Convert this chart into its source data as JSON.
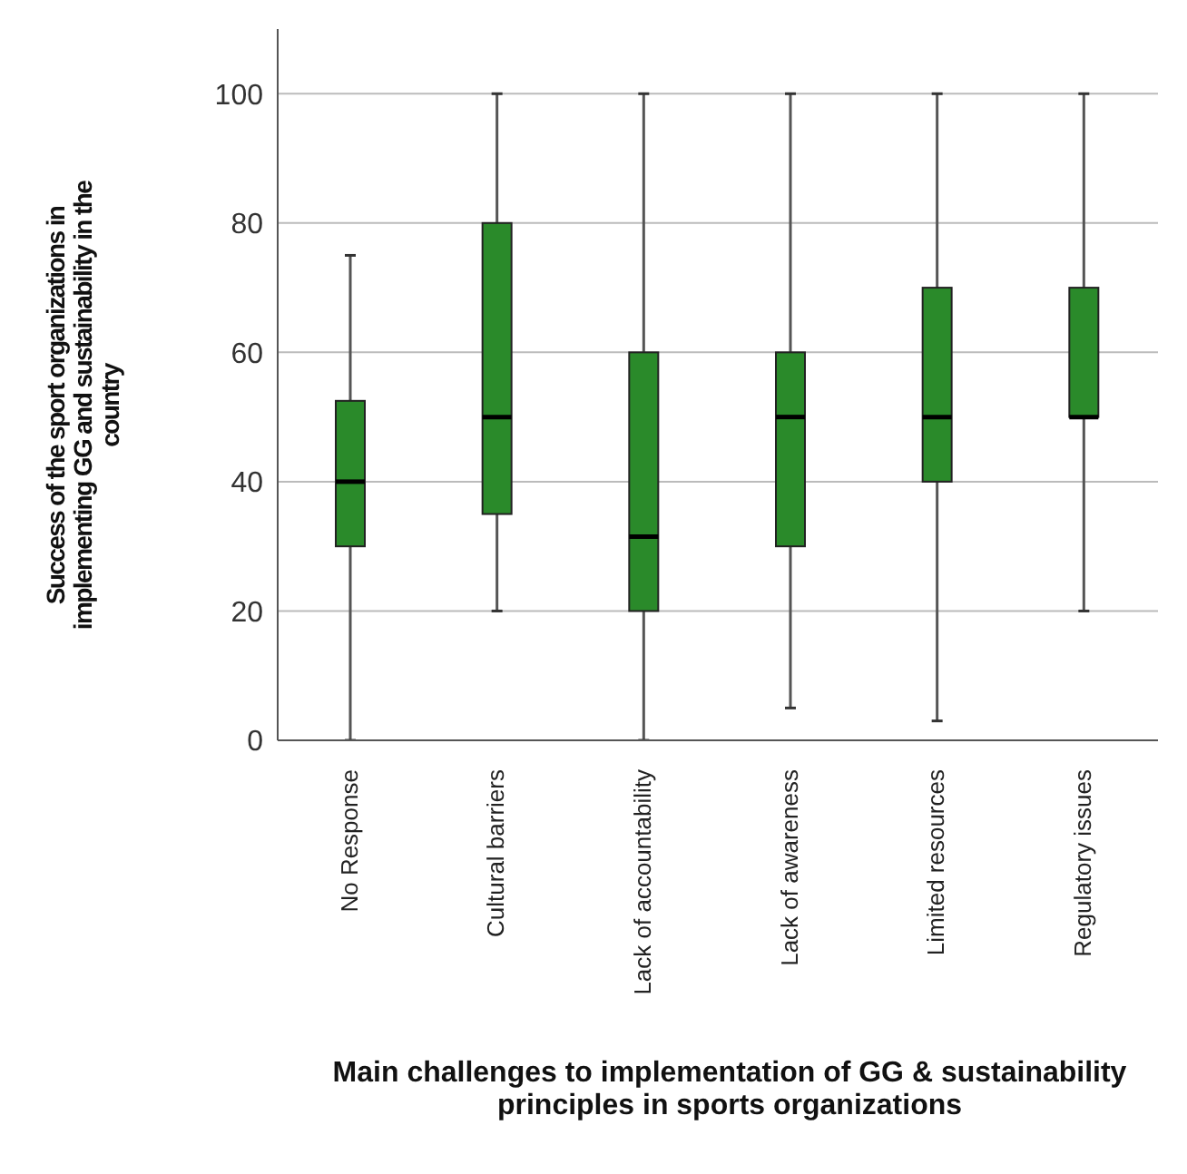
{
  "chart_data": {
    "type": "box",
    "xlabel": "Main challenges to implementation of GG & sustainability principles in sports organizations",
    "ylabel": "Success of the sport organizations in implementing GG and sustainability in the country",
    "categories": [
      "No Response",
      "Cultural barriers",
      "Lack of accountability",
      "Lack of awareness",
      "Limited resources",
      "Regulatory issues"
    ],
    "boxes": [
      {
        "low": 0,
        "q1": 30,
        "median": 40,
        "q3": 52.5,
        "high": 75
      },
      {
        "low": 20,
        "q1": 35,
        "median": 50,
        "q3": 80,
        "high": 100
      },
      {
        "low": 0,
        "q1": 20,
        "median": 31.5,
        "q3": 60,
        "high": 100
      },
      {
        "low": 5,
        "q1": 30,
        "median": 50,
        "q3": 60,
        "high": 100
      },
      {
        "low": 3,
        "q1": 40,
        "median": 50,
        "q3": 70,
        "high": 100
      },
      {
        "low": 20,
        "q1": 50,
        "median": 50,
        "q3": 70,
        "high": 100
      }
    ],
    "color": "#2a8a2a",
    "ylim": [
      0,
      110
    ],
    "yticks": [
      0,
      20,
      40,
      60,
      80,
      100
    ],
    "grid": "y"
  }
}
